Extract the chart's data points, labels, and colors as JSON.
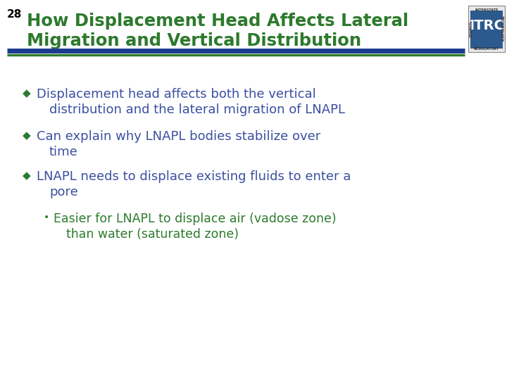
{
  "slide_number": "28",
  "title_line1": "How Displacement Head Affects Lateral",
  "title_line2": "Migration and Vertical Distribution",
  "title_color": "#2E5E99",
  "title_green": "#2D7A2D",
  "background_color": "#FFFFFF",
  "slide_number_color": "#000000",
  "divider_color_blue": "#1A3A8F",
  "divider_color_green": "#2D7A2D",
  "bullet_color_diamond": "#2D7A2D",
  "bullet_color_dot": "#2D7A2D",
  "bullet_char": "◆",
  "sub_bullet_char": "•",
  "text_color_main": "#3B4FA0",
  "text_color_sub": "#2D7A2D",
  "logo_bg": "#2D5A8E",
  "logo_border": "#2D5A8E",
  "figsize": [
    7.2,
    5.4
  ],
  "dpi": 100,
  "bullet1_line1": "Displacement head affects both the vertical",
  "bullet1_line2": "distribution and the lateral migration of LNAPL",
  "bullet2_line1": "Can explain why LNAPL bodies stabilize over",
  "bullet2_line2": "time",
  "bullet3_line1": "LNAPL needs to displace existing fluids to enter a",
  "bullet3_line2": "pore",
  "sub1_line1": "Easier for LNAPL to displace air (vadose zone)",
  "sub1_line2": "than water (saturated zone)"
}
